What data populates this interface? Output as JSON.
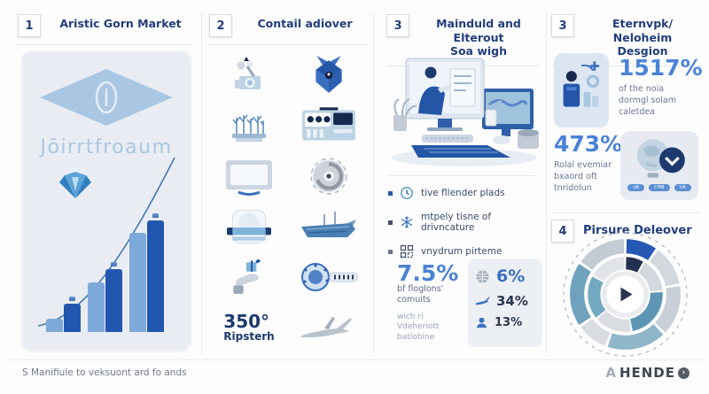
{
  "colors": {
    "accent_navy": "#223e7c",
    "accent_blue": "#2456a8",
    "stat_blue": "#4a83d6",
    "light_blue": "#a9c7e3",
    "card_bg": "#e9edf3"
  },
  "panel1": {
    "number": "1",
    "title": "Aristic Gorn Market",
    "logo_text": "Jōirrtfroaum",
    "icons": [
      "diamond-emblem-icon",
      "gem-icon",
      "trendline"
    ]
  },
  "panel2": {
    "number": "2",
    "title": "Contail adiover",
    "icons": [
      "microscope-icon",
      "package-box-icon",
      "plants-tray-icon",
      "control-panel-icon",
      "whiteboard-icon",
      "turbine-icon",
      "mixing-vessel-icon",
      "cargo-ship-icon",
      "hand-gift-icon",
      "gauge-rod-icon",
      "airplane-icon"
    ],
    "stat": {
      "value": "350°",
      "label": "Ripsterh"
    }
  },
  "panel3": {
    "number": "3",
    "title_line1": "Mainduld and Elterout",
    "title_line2": "Soa wigh",
    "illustration": "workstation-illustration",
    "bullets": [
      {
        "icon": "clock-icon",
        "text": "tive fllender plads"
      },
      {
        "icon": "snowflake-icon",
        "text": "mtpely tisne of drivncature"
      },
      {
        "icon": "qr-icon",
        "text": "vnydrum pirteme"
      }
    ],
    "stat_left": {
      "value": "7.5%",
      "lines": [
        "bf floglons'",
        "comuits"
      ],
      "sub_lines": [
        "wich ri",
        "Vdeheriott",
        "batlobine"
      ]
    },
    "stat_card": [
      {
        "icon": "globe-icon",
        "value": "6%"
      },
      {
        "icon": "plane-icon",
        "value": "34%"
      },
      {
        "icon": "person-icon",
        "value": "13%"
      }
    ]
  },
  "panel4": {
    "number": "3",
    "title_line1": "Eternvpk/ Neloheim",
    "title_line2": "Desgion",
    "stat1": {
      "icon": "person-plus-icon",
      "value": "1517%",
      "lines": [
        "of the noia",
        "dormgl solam",
        "caletdea"
      ]
    },
    "stat2": {
      "icon": "globe-clock-icon",
      "value": "473%",
      "lines": [
        "Rolal evemiar",
        "bxaord oft",
        "tnridolun"
      ],
      "pills": [
        "UK",
        "CMB",
        "UA"
      ]
    },
    "sub": {
      "number": "4",
      "title": "Pirsure Deleover"
    }
  },
  "footer": {
    "note": "S Manifiule to veksuont ard fo ands",
    "brand_prefix": "A",
    "brand_name": "HENDE",
    "brand_icon": "arrow-circle-icon",
    "brand_arrow": "›"
  },
  "chart_data": [
    {
      "id": "market-bars",
      "type": "bar",
      "title": "",
      "xlabel": "",
      "ylabel": "",
      "categories": [
        "pair-1",
        "pair-2",
        "pair-3"
      ],
      "series": [
        {
          "name": "light",
          "color": "#7da8da",
          "values": [
            15,
            56,
            112
          ]
        },
        {
          "name": "dark",
          "color": "#2257b0",
          "values": [
            32,
            71,
            126
          ]
        }
      ],
      "trendline": true,
      "note": "no axis labels visible; values estimated from bar pixel heights",
      "ylim": [
        0,
        132
      ]
    },
    {
      "id": "pirsure-donut",
      "type": "pie",
      "title": "Pirsure Deleover",
      "dashed_outline": true,
      "center_icon": "play-button",
      "rings": [
        {
          "r_inner": 46,
          "r_outer": 62,
          "segments": [
            {
              "color": "#2458b3",
              "deg": 35
            },
            {
              "color": "#d3d8df",
              "deg": 45
            },
            {
              "color": "#c9cfd7",
              "deg": 55
            },
            {
              "color": "#8fb6c9",
              "deg": 65
            },
            {
              "color": "#d9dde2",
              "deg": 35
            },
            {
              "color": "#6fa3bd",
              "deg": 70
            },
            {
              "color": "#c2cad3",
              "deg": 55
            }
          ]
        },
        {
          "r_inner": 28,
          "r_outer": 42,
          "segments": [
            {
              "color": "#22314f",
              "deg": 30
            },
            {
              "color": "#d3d8df",
              "deg": 55
            },
            {
              "color": "#5d96b5",
              "deg": 85
            },
            {
              "color": "#d9dde2",
              "deg": 60
            },
            {
              "color": "#74a9c2",
              "deg": 70
            },
            {
              "color": "#e0e3e8",
              "deg": 60
            }
          ]
        }
      ]
    }
  ]
}
